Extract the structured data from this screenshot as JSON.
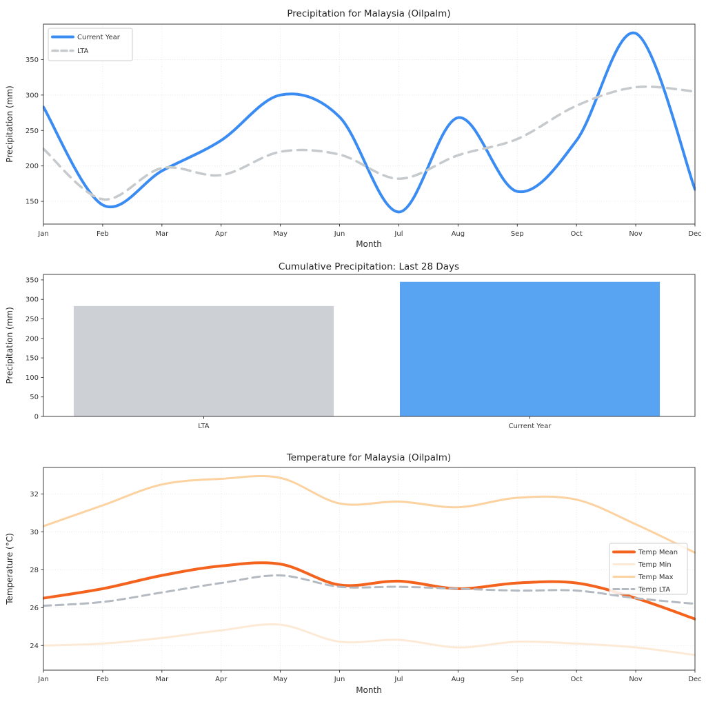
{
  "page": {
    "background": "#ffffff"
  },
  "chart_data": [
    {
      "type": "line",
      "title": "Precipitation for Malaysia (Oilpalm)",
      "xlabel": "Month",
      "ylabel": "Precipitation (mm)",
      "x": [
        "Jan",
        "Feb",
        "Mar",
        "Apr",
        "May",
        "Jun",
        "Jul",
        "Aug",
        "Sep",
        "Oct",
        "Nov",
        "Dec"
      ],
      "ylim": [
        118,
        400
      ],
      "yticks": [
        150,
        200,
        250,
        300,
        350
      ],
      "grid": true,
      "legend_position": "upper-left",
      "series": [
        {
          "name": "Current Year",
          "color": "#3b8cf2",
          "line_style": "solid",
          "line_width": 4,
          "values": [
            283,
            145,
            193,
            236,
            300,
            269,
            135,
            268,
            164,
            236,
            387,
            167
          ]
        },
        {
          "name": "LTA",
          "color": "#c6cacd",
          "line_style": "dashed",
          "line_width": 3.5,
          "values": [
            224,
            153,
            197,
            187,
            220,
            216,
            182,
            215,
            238,
            285,
            311,
            305
          ]
        }
      ]
    },
    {
      "type": "bar",
      "title": "Cumulative Precipitation: Last 28 Days",
      "xlabel": "",
      "ylabel": "Precipitation (mm)",
      "categories": [
        "LTA",
        "Current Year"
      ],
      "values": [
        283,
        345
      ],
      "bar_colors": [
        "#cdd1d5",
        "#59a3f3"
      ],
      "ylim": [
        0,
        364
      ],
      "yticks": [
        0,
        50,
        100,
        150,
        200,
        250,
        300,
        350
      ],
      "grid": false,
      "legend_position": "none"
    },
    {
      "type": "line",
      "title": "Temperature for Malaysia (Oilpalm)",
      "xlabel": "Month",
      "ylabel": "Temperature (°C)",
      "x": [
        "Jan",
        "Feb",
        "Mar",
        "Apr",
        "May",
        "Jun",
        "Jul",
        "Aug",
        "Sep",
        "Oct",
        "Nov",
        "Dec"
      ],
      "ylim": [
        22.7,
        33.4
      ],
      "yticks": [
        24,
        26,
        28,
        30,
        32
      ],
      "grid": true,
      "legend_position": "center-right",
      "series": [
        {
          "name": "Temp Mean",
          "color": "#f4631d",
          "line_style": "solid",
          "line_width": 4,
          "values": [
            26.5,
            27.0,
            27.7,
            28.2,
            28.3,
            27.2,
            27.4,
            27.0,
            27.3,
            27.3,
            26.5,
            25.4
          ]
        },
        {
          "name": "Temp Min",
          "color": "#fdead6",
          "line_style": "solid",
          "line_width": 3,
          "values": [
            24.0,
            24.1,
            24.4,
            24.8,
            25.1,
            24.2,
            24.3,
            23.9,
            24.2,
            24.1,
            23.9,
            23.5
          ]
        },
        {
          "name": "Temp Max",
          "color": "#fbd2a0",
          "line_style": "solid",
          "line_width": 3,
          "values": [
            30.3,
            31.4,
            32.5,
            32.8,
            32.85,
            31.5,
            31.6,
            31.3,
            31.8,
            31.7,
            30.4,
            28.9
          ]
        },
        {
          "name": "Temp LTA",
          "color": "#b4bac1",
          "line_style": "dashed",
          "line_width": 3,
          "values": [
            26.1,
            26.3,
            26.8,
            27.3,
            27.7,
            27.1,
            27.1,
            27.0,
            26.9,
            26.9,
            26.5,
            26.2
          ]
        }
      ]
    }
  ]
}
